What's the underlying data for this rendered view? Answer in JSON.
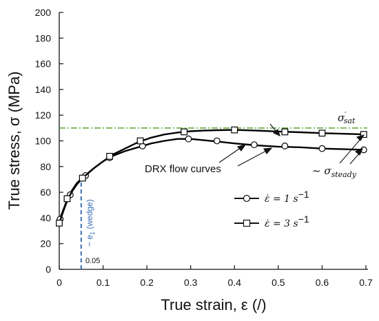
{
  "chart_data": {
    "type": "line",
    "xlabel": "True strain, ε (/)",
    "ylabel": "True stress, σ (MPa)",
    "xlim": [
      0,
      0.7
    ],
    "ylim": [
      0,
      200
    ],
    "x_ticks": [
      "0",
      "0.1",
      "0.2",
      "0.3",
      "0.4",
      "0.5",
      "0.6",
      "0.7"
    ],
    "y_ticks": [
      "0",
      "20",
      "40",
      "60",
      "80",
      "100",
      "120",
      "140",
      "160",
      "180",
      "200"
    ],
    "grid": false,
    "legend_position": "bottom-right",
    "series": [
      {
        "name": "ε̇ = 1 s⁻¹",
        "marker": "circle",
        "color": "#000000",
        "curve": [
          [
            0.0,
            38
          ],
          [
            0.01,
            47
          ],
          [
            0.02,
            56
          ],
          [
            0.03,
            62
          ],
          [
            0.04,
            67
          ],
          [
            0.055,
            72
          ],
          [
            0.08,
            79
          ],
          [
            0.1,
            84
          ],
          [
            0.12,
            88
          ],
          [
            0.15,
            92
          ],
          [
            0.18,
            95
          ],
          [
            0.21,
            98
          ],
          [
            0.24,
            100
          ],
          [
            0.27,
            101.5
          ],
          [
            0.3,
            101.5
          ],
          [
            0.33,
            100.5
          ],
          [
            0.36,
            99.5
          ],
          [
            0.4,
            98
          ],
          [
            0.45,
            96.5
          ],
          [
            0.5,
            95.5
          ],
          [
            0.55,
            95
          ],
          [
            0.6,
            94
          ],
          [
            0.65,
            93.5
          ],
          [
            0.7,
            93
          ]
        ],
        "markers": [
          [
            0.002,
            39
          ],
          [
            0.025,
            58
          ],
          [
            0.06,
            73
          ],
          [
            0.115,
            87
          ],
          [
            0.19,
            96
          ],
          [
            0.295,
            101.5
          ],
          [
            0.36,
            100
          ],
          [
            0.445,
            97
          ],
          [
            0.515,
            96
          ],
          [
            0.6,
            94
          ],
          [
            0.695,
            93
          ]
        ]
      },
      {
        "name": "ε̇ = 3 s⁻¹",
        "marker": "square",
        "color": "#000000",
        "curve": [
          [
            0.0,
            36
          ],
          [
            0.01,
            46
          ],
          [
            0.02,
            55
          ],
          [
            0.03,
            61
          ],
          [
            0.04,
            66
          ],
          [
            0.053,
            71
          ],
          [
            0.08,
            79
          ],
          [
            0.1,
            84
          ],
          [
            0.12,
            89
          ],
          [
            0.15,
            94
          ],
          [
            0.18,
            99
          ],
          [
            0.21,
            102.5
          ],
          [
            0.24,
            105
          ],
          [
            0.27,
            106.5
          ],
          [
            0.3,
            107.5
          ],
          [
            0.33,
            108
          ],
          [
            0.36,
            108.3
          ],
          [
            0.4,
            108.5
          ],
          [
            0.45,
            108
          ],
          [
            0.5,
            107.3
          ],
          [
            0.55,
            106.7
          ],
          [
            0.6,
            106
          ],
          [
            0.65,
            105.5
          ],
          [
            0.7,
            105
          ]
        ],
        "markers": [
          [
            0.0,
            36
          ],
          [
            0.018,
            55
          ],
          [
            0.053,
            71
          ],
          [
            0.115,
            88
          ],
          [
            0.185,
            100
          ],
          [
            0.285,
            107
          ],
          [
            0.4,
            108.5
          ],
          [
            0.515,
            107
          ],
          [
            0.6,
            106
          ],
          [
            0.695,
            105
          ]
        ]
      }
    ],
    "reference_lines": [
      {
        "type": "horizontal",
        "y": 110,
        "label": "σ'sat",
        "color": "#6aa83f",
        "style": "dash-dot"
      },
      {
        "type": "vertical",
        "x": 0.05,
        "label": "~ e₁ (wedge)",
        "color": "#3a6db5",
        "style": "dashed",
        "x_label": "0.05"
      }
    ],
    "annotations": [
      {
        "text": "DRX flow curves"
      },
      {
        "text": "~ σsteady"
      }
    ]
  },
  "labels": {
    "sat_main": "σ",
    "sat_sup": "′",
    "sat_sub": "sat",
    "steady_prefix": "~ σ",
    "steady_sub": "steady",
    "drx": "DRX flow curves",
    "wedge": "~ e",
    "wedge_sub": "1",
    "wedge_suffix": " (wedge)",
    "x005": "0.05",
    "leg1_lhs": "ε̇ = 1 s",
    "leg1_exp": "−1",
    "leg2_lhs": "ε̇ = 3 s",
    "leg2_exp": "−1"
  },
  "colors": {
    "axis": "#111111",
    "sat_line": "#6aa83f",
    "wedge_line": "#3a6db5"
  }
}
